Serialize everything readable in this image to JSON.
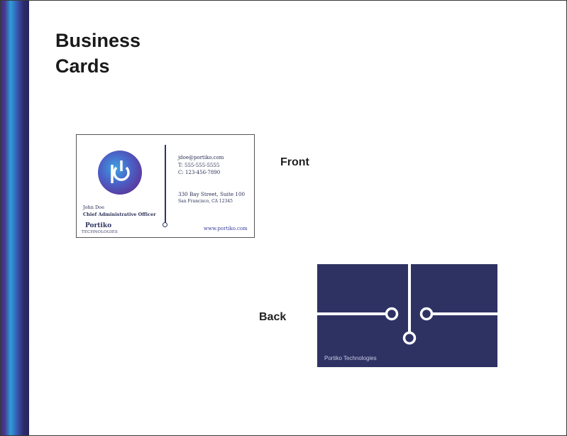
{
  "title_line1": "Business",
  "title_line2": "Cards",
  "front_label": "Front",
  "back_label": "Back",
  "front_card": {
    "email": "jdoe@portiko.com",
    "phone": "T: 555-555-5555",
    "cell": "C: 123-456-7890",
    "street": "330 Bay Street, Suite 100",
    "city": "San Francisco, CA 12345",
    "website": "www.portiko.com",
    "person_name": "John Doe",
    "person_title": "Chief Administrative Officer",
    "brand": "Portiko",
    "brand_sub": "TECHNOLOGIES"
  },
  "back_card": {
    "brand": "Portiko Technologies"
  },
  "colors": {
    "navy": "#2e3263",
    "stripe_blue": "#2a9fd8",
    "stripe_purple": "#3a2f72"
  }
}
